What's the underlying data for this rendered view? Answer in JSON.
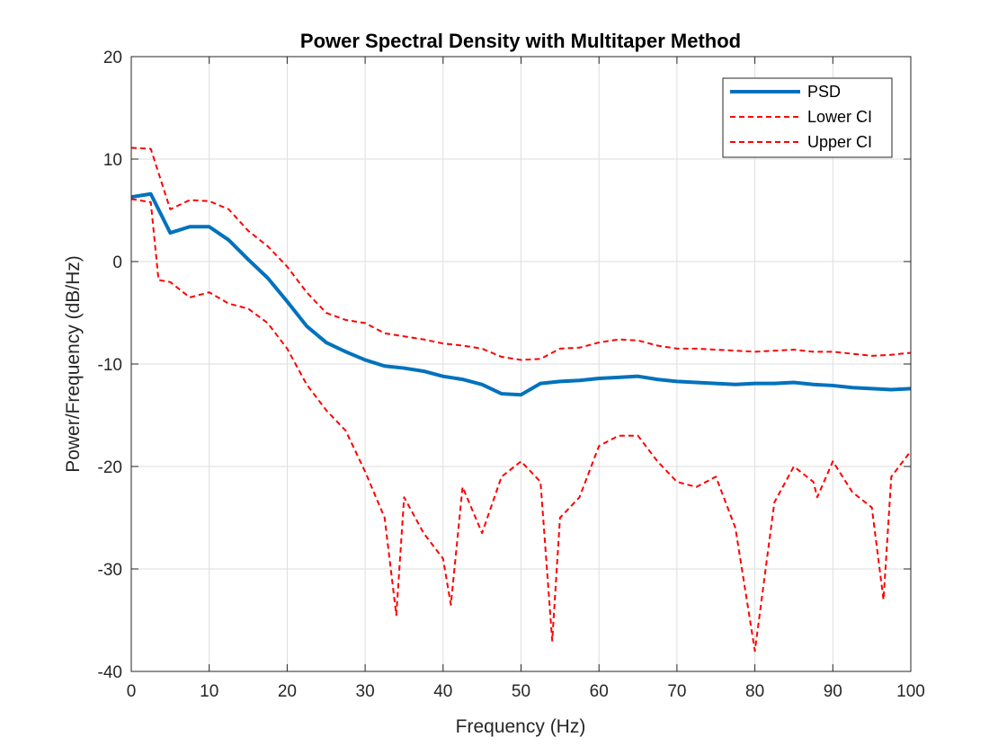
{
  "chart_data": {
    "type": "line",
    "title": "Power Spectral Density with Multitaper Method",
    "xlabel": "Frequency (Hz)",
    "ylabel": "Power/Frequency (dB/Hz)",
    "xlim": [
      0,
      100
    ],
    "ylim": [
      -40,
      20
    ],
    "xticks": [
      0,
      10,
      20,
      30,
      40,
      50,
      60,
      70,
      80,
      90,
      100
    ],
    "yticks": [
      -40,
      -30,
      -20,
      -10,
      0,
      10,
      20
    ],
    "grid": true,
    "legend_position": "top-right",
    "series": [
      {
        "name": "PSD",
        "color": "#0072BD",
        "style": "solid",
        "x": [
          0,
          2.5,
          5,
          7.5,
          10,
          12.5,
          15,
          17.5,
          20,
          22.5,
          25,
          27.5,
          30,
          32.5,
          35,
          37.5,
          40,
          42.5,
          45,
          47.5,
          50,
          52.5,
          55,
          57.5,
          60,
          62.5,
          65,
          67.5,
          70,
          72.5,
          75,
          77.5,
          80,
          82.5,
          85,
          87.5,
          90,
          92.5,
          95,
          97.5,
          100
        ],
        "y": [
          6.3,
          6.6,
          2.8,
          3.4,
          3.4,
          2.1,
          0.2,
          -1.6,
          -3.9,
          -6.3,
          -7.9,
          -8.8,
          -9.6,
          -10.2,
          -10.4,
          -10.7,
          -11.2,
          -11.5,
          -12.0,
          -12.9,
          -13.0,
          -11.9,
          -11.7,
          -11.6,
          -11.4,
          -11.3,
          -11.2,
          -11.5,
          -11.7,
          -11.8,
          -11.9,
          -12.0,
          -11.9,
          -11.9,
          -11.8,
          -12.0,
          -12.1,
          -12.3,
          -12.4,
          -12.5,
          -12.4
        ]
      },
      {
        "name": "Lower CI",
        "color": "#FF0000",
        "style": "dashed",
        "x": [
          0,
          2.5,
          3.5,
          5,
          7.5,
          10,
          12.5,
          15,
          17.5,
          20,
          22.5,
          25,
          27.5,
          30,
          32.5,
          34,
          35,
          37.5,
          40,
          41,
          42.5,
          45,
          47.5,
          50,
          52.5,
          54,
          55,
          57.5,
          60,
          62.5,
          65,
          67.5,
          70,
          72.5,
          75,
          77.5,
          80,
          82.5,
          85,
          87.5,
          88,
          90,
          92.5,
          95,
          96.5,
          97.5,
          100
        ],
        "y": [
          6.1,
          5.8,
          -1.8,
          -2.0,
          -3.5,
          -3.0,
          -4.1,
          -4.6,
          -6.0,
          -8.5,
          -12.0,
          -14.5,
          -16.5,
          -20.5,
          -25.0,
          -34.5,
          -23.0,
          -26.5,
          -29.0,
          -33.5,
          -22.0,
          -26.5,
          -21.0,
          -19.5,
          -21.5,
          -37.0,
          -25.0,
          -23.0,
          -18.0,
          -17.0,
          -17.0,
          -19.5,
          -21.5,
          -22.0,
          -21.0,
          -26.0,
          -38.0,
          -23.5,
          -20.0,
          -21.5,
          -23.0,
          -19.5,
          -22.5,
          -24.0,
          -33.0,
          -21.0,
          -18.5
        ]
      },
      {
        "name": "Upper CI",
        "color": "#FF0000",
        "style": "dashed",
        "x": [
          0,
          2.5,
          5,
          7.5,
          10,
          12.5,
          15,
          17.5,
          20,
          22.5,
          25,
          27.5,
          30,
          32.5,
          35,
          37.5,
          40,
          42.5,
          45,
          47.5,
          50,
          52.5,
          55,
          57.5,
          60,
          62.5,
          65,
          67.5,
          70,
          72.5,
          75,
          77.5,
          80,
          82.5,
          85,
          87.5,
          90,
          92.5,
          95,
          97.5,
          100
        ],
        "y": [
          11.1,
          11.0,
          5.1,
          6.0,
          5.9,
          5.1,
          3.0,
          1.5,
          -0.5,
          -3.0,
          -5.0,
          -5.7,
          -6.0,
          -7.0,
          -7.3,
          -7.6,
          -8.0,
          -8.2,
          -8.5,
          -9.3,
          -9.6,
          -9.5,
          -8.5,
          -8.4,
          -7.9,
          -7.6,
          -7.7,
          -8.2,
          -8.5,
          -8.5,
          -8.6,
          -8.7,
          -8.8,
          -8.7,
          -8.6,
          -8.8,
          -8.8,
          -9.0,
          -9.2,
          -9.1,
          -8.9
        ]
      }
    ]
  }
}
